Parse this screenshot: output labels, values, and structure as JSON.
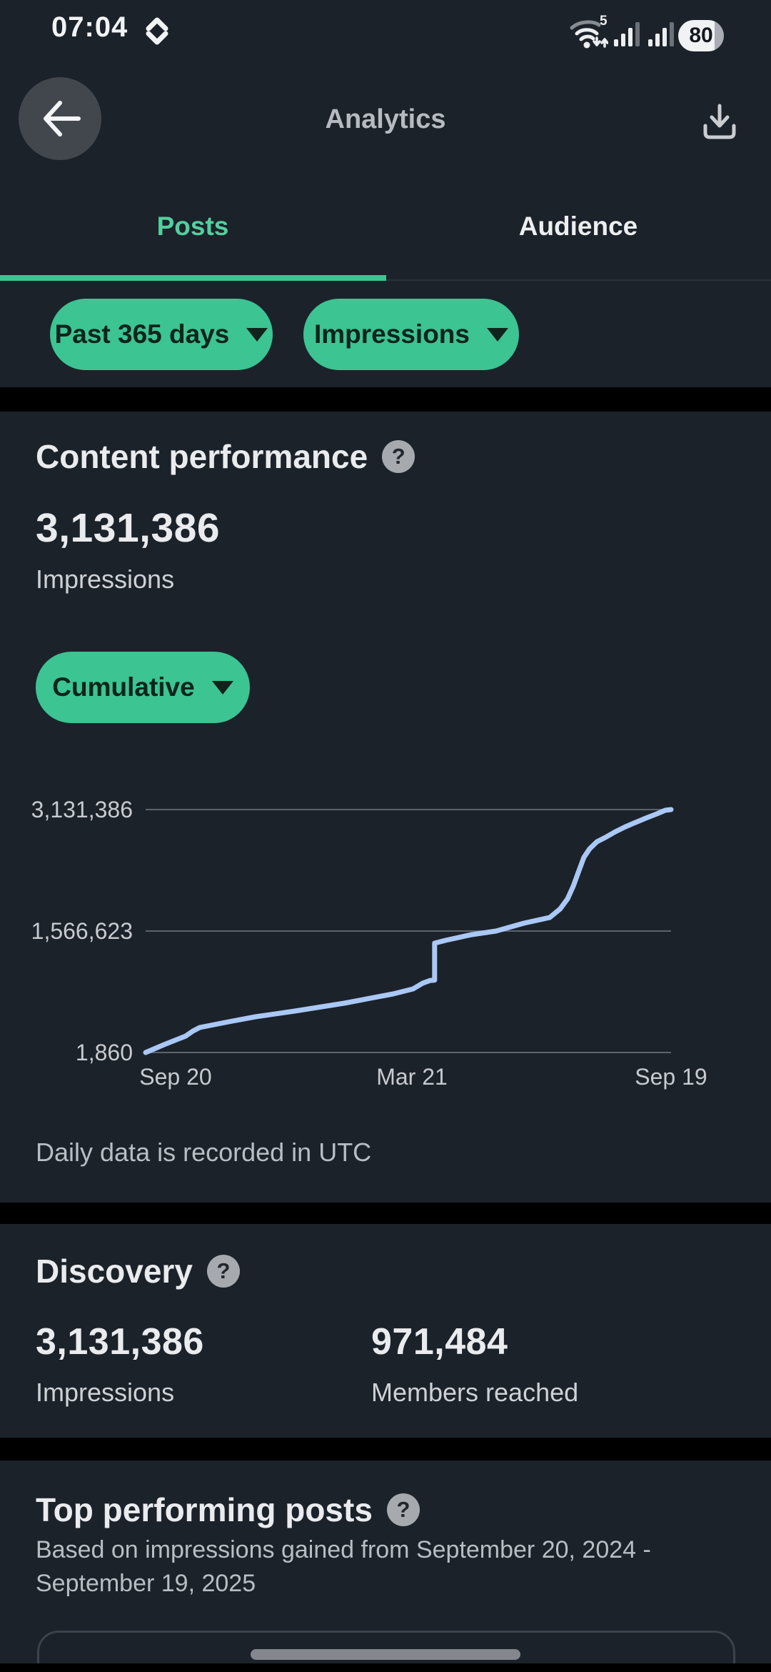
{
  "status_bar": {
    "time": "07:04",
    "wifi_generation": "5",
    "battery": "80"
  },
  "header": {
    "title": "Analytics"
  },
  "tabs": [
    {
      "label": "Posts",
      "active": true
    },
    {
      "label": "Audience",
      "active": false
    }
  ],
  "filters": {
    "date_range": "Past 365 days",
    "metric": "Impressions"
  },
  "icons": {
    "help_glyph": "?"
  },
  "content_performance": {
    "title": "Content performance",
    "value": "3,131,386",
    "label": "Impressions",
    "mode": "Cumulative",
    "footnote": "Daily data is recorded in UTC"
  },
  "chart_data": {
    "type": "line",
    "title": "Content performance — cumulative impressions",
    "mode": "Cumulative",
    "metric": "Impressions",
    "x_range": [
      "September 20, 2024",
      "September 19, 2025"
    ],
    "x_ticks": [
      "Sep 20",
      "Mar 21",
      "Sep 19"
    ],
    "y_ticks": [
      3131386,
      1566623,
      1860
    ],
    "y_tick_labels": [
      "3,131,386",
      "1,566,623",
      "1,860"
    ],
    "ylim": [
      1860,
      3131386
    ],
    "grid": true,
    "legend": false,
    "points": [
      [
        0.0,
        1860
      ],
      [
        0.035,
        103000
      ],
      [
        0.076,
        213000
      ],
      [
        0.09,
        278000
      ],
      [
        0.103,
        324000
      ],
      [
        0.158,
        398000
      ],
      [
        0.209,
        462000
      ],
      [
        0.284,
        536000
      ],
      [
        0.378,
        637000
      ],
      [
        0.471,
        757000
      ],
      [
        0.509,
        821000
      ],
      [
        0.527,
        894000
      ],
      [
        0.542,
        931000
      ],
      [
        0.55,
        934000
      ],
      [
        0.55,
        1410000
      ],
      [
        0.571,
        1447000
      ],
      [
        0.62,
        1520000
      ],
      [
        0.667,
        1566623
      ],
      [
        0.72,
        1668000
      ],
      [
        0.769,
        1741000
      ],
      [
        0.789,
        1852000
      ],
      [
        0.803,
        1981000
      ],
      [
        0.814,
        2146000
      ],
      [
        0.823,
        2312000
      ],
      [
        0.834,
        2514000
      ],
      [
        0.845,
        2625000
      ],
      [
        0.859,
        2717000
      ],
      [
        0.875,
        2772000
      ],
      [
        0.894,
        2846000
      ],
      [
        0.913,
        2910000
      ],
      [
        0.932,
        2965000
      ],
      [
        0.952,
        3021000
      ],
      [
        0.973,
        3076000
      ],
      [
        0.989,
        3122000
      ],
      [
        1.0,
        3131386
      ]
    ]
  },
  "discovery": {
    "title": "Discovery",
    "stats": [
      {
        "value": "3,131,386",
        "label": "Impressions"
      },
      {
        "value": "971,484",
        "label": "Members reached"
      }
    ]
  },
  "top_posts": {
    "title": "Top performing posts",
    "subtitle": "Based on impressions gained from September 20, 2024 - September 19, 2025"
  },
  "colors": {
    "accent_green": "#3cc492",
    "active_tab_green": "#53cf9e",
    "chart_line_blue": "#aac8f5",
    "background": "#1c222a",
    "separator": "#000000"
  }
}
